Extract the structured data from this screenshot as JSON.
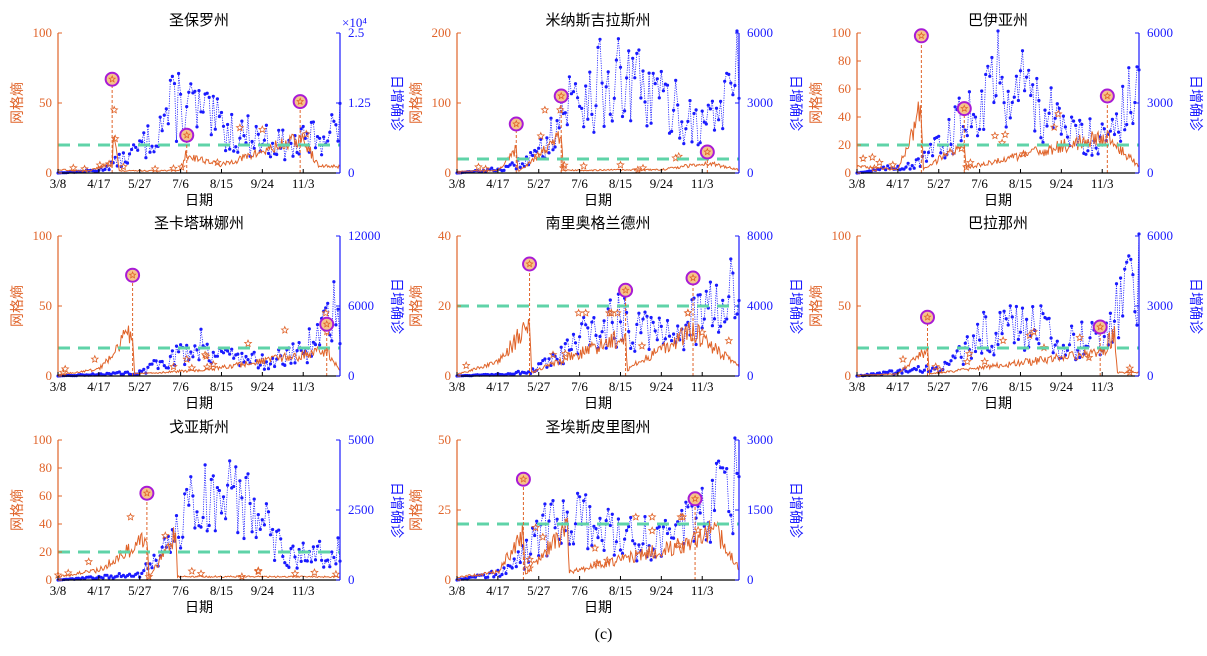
{
  "figure_label": "(c)",
  "colors": {
    "entropy": "#e0642a",
    "cases": "#1a1aff",
    "threshold": "#5fd3a8",
    "marker": "#a81bd6",
    "marker_fill": "#f6c48a"
  },
  "chart_data": [
    {
      "type": "line",
      "title": "圣保罗州",
      "xlabel": "日期",
      "ylabel_left": "网格熵",
      "ylabel_right": "日增确诊",
      "x_ticks": [
        "3/8",
        "4/17",
        "5/27",
        "7/6",
        "8/15",
        "9/24",
        "11/3"
      ],
      "x_range": [
        "3/8",
        "12/10"
      ],
      "y_left_ticks": [
        "0",
        "50",
        "100"
      ],
      "y_left_range": [
        0,
        100
      ],
      "y_right_ticks": [
        "0",
        "1.25",
        "2.5"
      ],
      "y_right_range": [
        0,
        25000
      ],
      "y_right_multiplier": "×10⁴",
      "threshold": 20,
      "events": [
        {
          "date": "4/30",
          "entropy": 67
        },
        {
          "date": "7/12",
          "entropy": 27
        },
        {
          "date": "10/31",
          "entropy": 51
        }
      ],
      "series": [
        {
          "name": "网格熵",
          "values": [
            [
              0,
              5
            ],
            [
              30,
              3
            ],
            [
              53,
              15
            ],
            [
              54,
              67
            ],
            [
              60,
              3
            ],
            [
              120,
              4
            ],
            [
              125,
              27
            ],
            [
              160,
              12
            ],
            [
              237,
              51
            ],
            [
              244,
              40
            ],
            [
              255,
              10
            ]
          ]
        },
        {
          "name": "日增确诊",
          "values": [
            [
              0,
              0
            ],
            [
              40,
              500
            ],
            [
              70,
              3000
            ],
            [
              90,
              6000
            ],
            [
              105,
              10000
            ],
            [
              120,
              13000
            ],
            [
              135,
              11000
            ],
            [
              150,
              9000
            ],
            [
              170,
              7500
            ],
            [
              200,
              6000
            ],
            [
              230,
              4500
            ],
            [
              250,
              6500
            ],
            [
              276,
              8500
            ]
          ]
        }
      ]
    },
    {
      "type": "line",
      "title": "米纳斯吉拉斯州",
      "xlabel": "日期",
      "ylabel_left": "网格熵",
      "ylabel_right": "日增确诊",
      "x_ticks": [
        "3/8",
        "4/17",
        "5/27",
        "7/6",
        "8/15",
        "9/24",
        "11/3"
      ],
      "x_range": [
        "3/8",
        "12/10"
      ],
      "y_left_ticks": [
        "0",
        "100",
        "200"
      ],
      "y_left_range": [
        0,
        200
      ],
      "y_right_ticks": [
        "0",
        "3000",
        "6000"
      ],
      "y_right_range": [
        0,
        6000
      ],
      "threshold": 20,
      "events": [
        {
          "date": "5/5",
          "entropy": 70
        },
        {
          "date": "6/18",
          "entropy": 110
        },
        {
          "date": "11/8",
          "entropy": 30
        }
      ],
      "series": [
        {
          "name": "网格熵",
          "values": [
            [
              0,
              5
            ],
            [
              40,
              8
            ],
            [
              58,
              70
            ],
            [
              60,
              5
            ],
            [
              102,
              110
            ],
            [
              104,
              8
            ],
            [
              200,
              10
            ],
            [
              245,
              30
            ],
            [
              276,
              10
            ]
          ]
        },
        {
          "name": "日增确诊",
          "values": [
            [
              0,
              0
            ],
            [
              50,
              200
            ],
            [
              80,
              800
            ],
            [
              100,
              2500
            ],
            [
              120,
              3500
            ],
            [
              150,
              3800
            ],
            [
              180,
              3500
            ],
            [
              210,
              2800
            ],
            [
              240,
              2000
            ],
            [
              260,
              3000
            ],
            [
              276,
              4200
            ]
          ]
        }
      ]
    },
    {
      "type": "line",
      "title": "巴伊亚州",
      "xlabel": "日期",
      "ylabel_left": "网格熵",
      "ylabel_right": "日增确诊",
      "x_ticks": [
        "3/8",
        "4/17",
        "5/27",
        "7/6",
        "8/15",
        "9/24",
        "11/3"
      ],
      "x_range": [
        "3/8",
        "12/10"
      ],
      "y_left_ticks": [
        "0",
        "20",
        "40",
        "60",
        "80",
        "100"
      ],
      "y_left_range": [
        0,
        100
      ],
      "y_right_ticks": [
        "0",
        "3000",
        "6000"
      ],
      "y_right_range": [
        0,
        6000
      ],
      "threshold": 20,
      "events": [
        {
          "date": "5/10",
          "entropy": 98
        },
        {
          "date": "6/21",
          "entropy": 46
        },
        {
          "date": "11/8",
          "entropy": 55
        }
      ],
      "series": [
        {
          "name": "网格熵",
          "values": [
            [
              0,
              10
            ],
            [
              40,
              5
            ],
            [
              63,
              98
            ],
            [
              65,
              5
            ],
            [
              105,
              46
            ],
            [
              107,
              8
            ],
            [
              245,
              55
            ],
            [
              276,
              10
            ]
          ]
        },
        {
          "name": "日增确诊",
          "values": [
            [
              0,
              0
            ],
            [
              60,
              400
            ],
            [
              90,
              1500
            ],
            [
              110,
              2800
            ],
            [
              130,
              4000
            ],
            [
              150,
              4200
            ],
            [
              170,
              3500
            ],
            [
              200,
              1800
            ],
            [
              230,
              1500
            ],
            [
              260,
              2500
            ],
            [
              276,
              3800
            ]
          ]
        }
      ]
    },
    {
      "type": "line",
      "title": "圣卡塔琳娜州",
      "xlabel": "日期",
      "ylabel_left": "网格熵",
      "ylabel_right": "日增确诊",
      "x_ticks": [
        "3/8",
        "4/17",
        "5/27",
        "7/6",
        "8/15",
        "9/24",
        "11/3"
      ],
      "x_range": [
        "3/8",
        "12/10"
      ],
      "y_left_ticks": [
        "0",
        "50",
        "100"
      ],
      "y_left_range": [
        0,
        100
      ],
      "y_right_ticks": [
        "0",
        "6000",
        "12000"
      ],
      "y_right_range": [
        0,
        12000
      ],
      "threshold": 20,
      "events": [
        {
          "date": "5/20",
          "entropy": 72
        },
        {
          "date": "11/26",
          "entropy": 37
        }
      ],
      "series": [
        {
          "name": "网格熵",
          "values": [
            [
              0,
              2
            ],
            [
              40,
              10
            ],
            [
              73,
              72
            ],
            [
              75,
              3
            ],
            [
              150,
              10
            ],
            [
              263,
              37
            ],
            [
              276,
              8
            ]
          ]
        },
        {
          "name": "日增确诊",
          "values": [
            [
              0,
              0
            ],
            [
              80,
              300
            ],
            [
              110,
              1500
            ],
            [
              140,
              2800
            ],
            [
              160,
              2000
            ],
            [
              200,
              1200
            ],
            [
              240,
              2000
            ],
            [
              260,
              4500
            ],
            [
              276,
              6000
            ]
          ]
        }
      ]
    },
    {
      "type": "line",
      "title": "南里奥格兰德州",
      "xlabel": "日期",
      "ylabel_left": "网格熵",
      "ylabel_right": "日增确诊",
      "x_ticks": [
        "3/8",
        "4/17",
        "5/27",
        "7/6",
        "8/15",
        "9/24",
        "11/3"
      ],
      "x_range": [
        "3/8",
        "12/10"
      ],
      "y_left_ticks": [
        "0",
        "20",
        "40"
      ],
      "y_left_range": [
        0,
        40
      ],
      "y_right_ticks": [
        "0",
        "4000",
        "8000"
      ],
      "y_right_range": [
        0,
        8000
      ],
      "threshold": 20,
      "events": [
        {
          "date": "5/18",
          "entropy": 32
        },
        {
          "date": "8/20",
          "entropy": 24.5
        },
        {
          "date": "10/25",
          "entropy": 28
        }
      ],
      "series": [
        {
          "name": "网格熵",
          "values": [
            [
              0,
              1
            ],
            [
              40,
              8
            ],
            [
              71,
              32
            ],
            [
              73,
              2
            ],
            [
              165,
              24.5
            ],
            [
              167,
              4
            ],
            [
              231,
              28
            ],
            [
              240,
              22
            ],
            [
              276,
              6
            ]
          ]
        },
        {
          "name": "日增确诊",
          "values": [
            [
              0,
              0
            ],
            [
              70,
              200
            ],
            [
              100,
              1000
            ],
            [
              130,
              2500
            ],
            [
              160,
              3200
            ],
            [
              190,
              3000
            ],
            [
              220,
              2500
            ],
            [
              250,
              4000
            ],
            [
              276,
              5000
            ]
          ]
        }
      ]
    },
    {
      "type": "line",
      "title": "巴拉那州",
      "xlabel": "日期",
      "ylabel_left": "网格熵",
      "ylabel_right": "日增确诊",
      "x_ticks": [
        "3/8",
        "4/17",
        "5/27",
        "7/6",
        "8/15",
        "9/24",
        "11/3"
      ],
      "x_range": [
        "3/8",
        "12/10"
      ],
      "y_left_ticks": [
        "0",
        "50",
        "100"
      ],
      "y_left_range": [
        0,
        100
      ],
      "y_right_ticks": [
        "0",
        "3000",
        "6000"
      ],
      "y_right_range": [
        0,
        6000
      ],
      "threshold": 20,
      "events": [
        {
          "date": "5/16",
          "entropy": 42
        },
        {
          "date": "11/1",
          "entropy": 35
        }
      ],
      "series": [
        {
          "name": "网格熵",
          "values": [
            [
              0,
              1
            ],
            [
              40,
              3
            ],
            [
              69,
              42
            ],
            [
              71,
              3
            ],
            [
              240,
              35
            ],
            [
              252,
              65
            ],
            [
              255,
              5
            ],
            [
              276,
              5
            ]
          ]
        },
        {
          "name": "日增确诊",
          "values": [
            [
              0,
              0
            ],
            [
              90,
              400
            ],
            [
              120,
              1800
            ],
            [
              150,
              2200
            ],
            [
              180,
              2000
            ],
            [
              210,
              1400
            ],
            [
              240,
              1800
            ],
            [
              260,
              3500
            ],
            [
              276,
              5000
            ]
          ]
        }
      ]
    },
    {
      "type": "line",
      "title": "戈亚斯州",
      "xlabel": "日期",
      "ylabel_left": "网格熵",
      "ylabel_right": "日增确诊",
      "x_ticks": [
        "3/8",
        "4/17",
        "5/27",
        "7/6",
        "8/15",
        "9/24",
        "11/3"
      ],
      "x_range": [
        "3/8",
        "12/10"
      ],
      "y_left_ticks": [
        "0",
        "20",
        "40",
        "60",
        "80",
        "100"
      ],
      "y_left_range": [
        0,
        100
      ],
      "y_right_ticks": [
        "0",
        "2500",
        "5000"
      ],
      "y_right_range": [
        0,
        5000
      ],
      "threshold": 20,
      "events": [
        {
          "date": "6/3",
          "entropy": 62
        }
      ],
      "series": [
        {
          "name": "网格熵",
          "values": [
            [
              0,
              5
            ],
            [
              40,
              15
            ],
            [
              87,
              62
            ],
            [
              89,
              3
            ],
            [
              115,
              68
            ],
            [
              117,
              5
            ],
            [
              276,
              5
            ]
          ]
        },
        {
          "name": "日增确诊",
          "values": [
            [
              0,
              0
            ],
            [
              80,
              200
            ],
            [
              100,
              800
            ],
            [
              130,
              2500
            ],
            [
              160,
              3000
            ],
            [
              190,
              2500
            ],
            [
              220,
              1000
            ],
            [
              250,
              800
            ],
            [
              276,
              1200
            ]
          ]
        }
      ]
    },
    {
      "type": "line",
      "title": "圣埃斯皮里图州",
      "xlabel": "日期",
      "ylabel_left": "网格熵",
      "ylabel_right": "日增确诊",
      "x_ticks": [
        "3/8",
        "4/17",
        "5/27",
        "7/6",
        "8/15",
        "9/24",
        "11/3"
      ],
      "x_range": [
        "3/8",
        "12/10"
      ],
      "y_left_ticks": [
        "0",
        "25",
        "50"
      ],
      "y_left_range": [
        0,
        50
      ],
      "y_right_ticks": [
        "0",
        "1500",
        "3000"
      ],
      "y_right_range": [
        0,
        3000
      ],
      "threshold": 20,
      "events": [
        {
          "date": "5/12",
          "entropy": 36
        },
        {
          "date": "10/27",
          "entropy": 29
        }
      ],
      "series": [
        {
          "name": "网格熵",
          "values": [
            [
              0,
              2
            ],
            [
              40,
              6
            ],
            [
              65,
              36
            ],
            [
              67,
              4
            ],
            [
              108,
              40
            ],
            [
              110,
              6
            ],
            [
              233,
              29
            ],
            [
              250,
              42
            ],
            [
              276,
              8
            ]
          ]
        },
        {
          "name": "日增确诊",
          "values": [
            [
              0,
              0
            ],
            [
              50,
              200
            ],
            [
              70,
              600
            ],
            [
              90,
              1200
            ],
            [
              110,
              1300
            ],
            [
              130,
              1200
            ],
            [
              160,
              900
            ],
            [
              200,
              900
            ],
            [
              230,
              1300
            ],
            [
              260,
              1800
            ],
            [
              276,
              2300
            ]
          ]
        }
      ]
    }
  ]
}
